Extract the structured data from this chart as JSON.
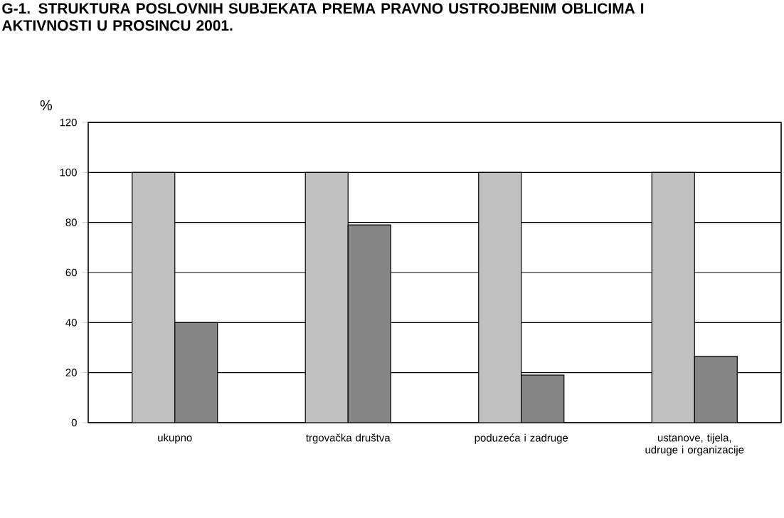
{
  "chart_data": {
    "type": "bar",
    "title": "G-1. STRUKTURA POSLOVNIH SUBJEKATA PREMA PRAVNO USTROJBENIM OBLICIMA I AKTIVNOSTI U PROSINCU 2001.",
    "ylabel": "%",
    "categories": [
      "ukupno",
      "trgovačka društva",
      "poduzeća i zadruge",
      "ustanove, tijela, udruge i organizacije"
    ],
    "series": [
      {
        "color": "#c0c0c0",
        "values": [
          100,
          100,
          100,
          100
        ]
      },
      {
        "color": "#868686",
        "values": [
          40,
          79,
          19,
          26.5
        ]
      }
    ],
    "ylim": [
      0,
      120
    ],
    "yticks": [
      0,
      20,
      40,
      60,
      80,
      100,
      120
    ],
    "grid": "y"
  }
}
